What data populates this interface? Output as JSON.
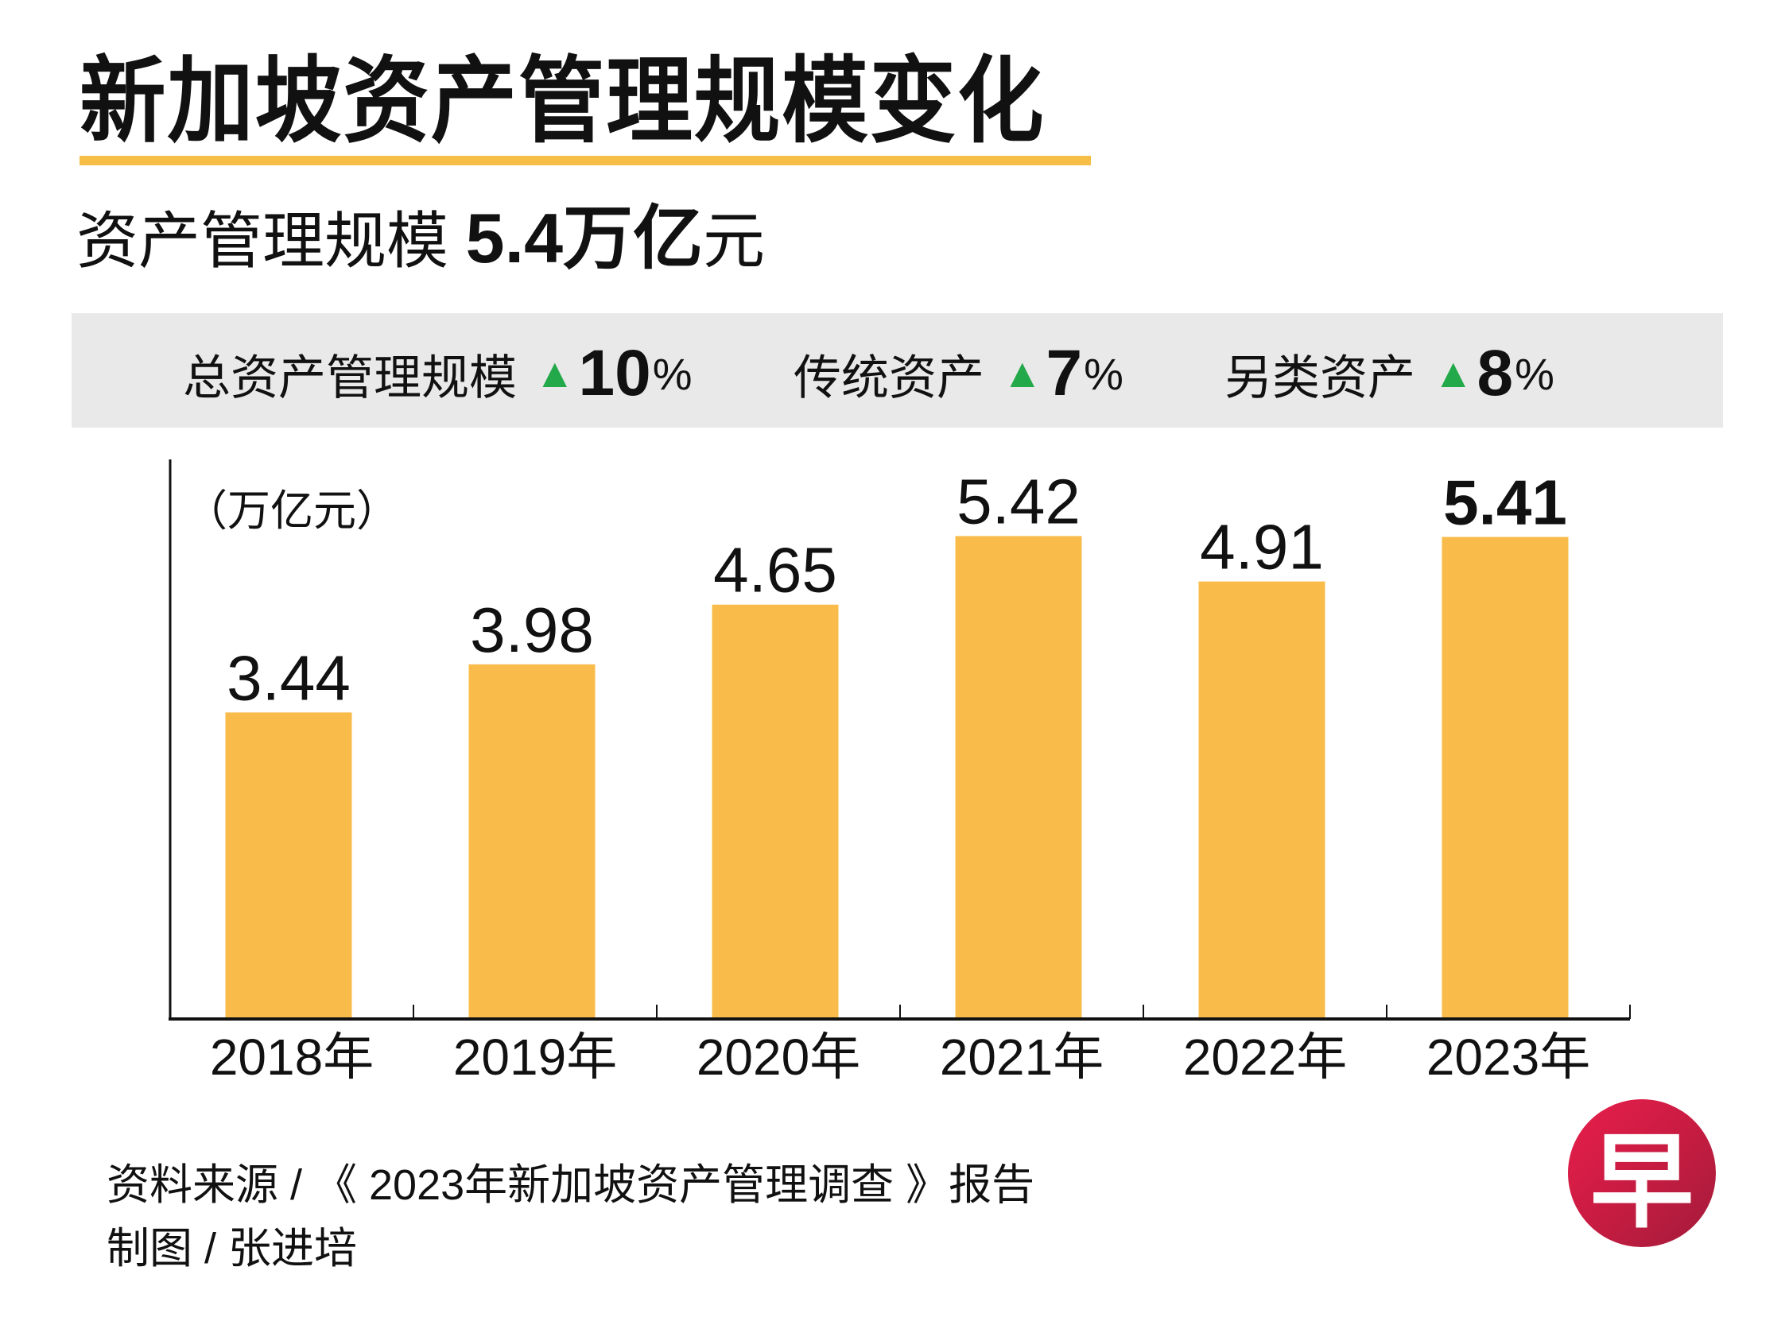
{
  "header": {
    "title": "新加坡资产管理规模变化",
    "subtitle_prefix": "资产管理规模 ",
    "subtitle_value": "5.4万亿",
    "subtitle_unit": "元"
  },
  "stats": [
    {
      "label": "总资产管理规模",
      "trend_icon": "▲",
      "value": "10",
      "unit": "%"
    },
    {
      "label": "传统资产",
      "trend_icon": "▲",
      "value": "7",
      "unit": "%"
    },
    {
      "label": "另类资产",
      "trend_icon": "▲",
      "value": "8",
      "unit": "%"
    }
  ],
  "colors": {
    "bar": "#F9BC4B",
    "accent_underline": "#F7BE47",
    "trend_up": "#23A94A",
    "stats_background": "#E9E9E9",
    "logo_red": "#D41E45"
  },
  "chart_data": {
    "type": "bar",
    "title": "新加坡资产管理规模变化",
    "ylabel": "（万亿元）",
    "xlabel": "",
    "categories": [
      "2018年",
      "2019年",
      "2020年",
      "2021年",
      "2022年",
      "2023年"
    ],
    "values": [
      3.44,
      3.98,
      4.65,
      5.42,
      4.91,
      5.41
    ],
    "value_labels": [
      "3.44",
      "3.98",
      "4.65",
      "5.42",
      "4.91",
      "5.41"
    ],
    "highlight_index": 5,
    "ylim": [
      0,
      5.9
    ],
    "grid": false,
    "legend": "none"
  },
  "footer": {
    "source": "资料来源 / 《 2023年新加坡资产管理调查 》报告",
    "credit": "制图 / 张进培"
  },
  "logo": {
    "glyph": "早",
    "icon": "zaobao-logo-icon"
  }
}
